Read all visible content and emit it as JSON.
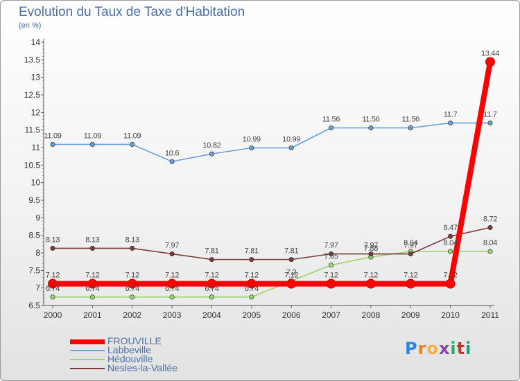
{
  "title": "Evolution du Taux de Taxe d'Habitation",
  "subtitle": "(en %)",
  "brand": {
    "letters": [
      "P",
      "r",
      "o",
      "x",
      "i",
      "t",
      "i"
    ],
    "colors": [
      "#2e86de",
      "#e67e22",
      "#f5b041",
      "#8e44ad",
      "#27ae60",
      "#c0392b",
      "#16a085"
    ]
  },
  "chart_data": {
    "type": "line",
    "title": "Evolution du Taux de Taxe d'Habitation",
    "ylabel": "(en %)",
    "xlabel": "",
    "x": [
      "2000",
      "2001",
      "2002",
      "2003",
      "2004",
      "2005",
      "2006",
      "2007",
      "2008",
      "2009",
      "2010",
      "2011"
    ],
    "ylim": [
      6.5,
      14
    ],
    "yticks": [
      "6.5",
      "7",
      "7.5",
      "8",
      "8.5",
      "9",
      "9.5",
      "10",
      "10.5",
      "11",
      "11.5",
      "12",
      "12.5",
      "13",
      "13.5",
      "14"
    ],
    "grid": false,
    "legend": "bottom-left",
    "series": [
      {
        "name": "FROUVILLE",
        "color": "#ff0000",
        "thick": true,
        "values": [
          7.12,
          7.12,
          7.12,
          7.12,
          7.12,
          7.12,
          7.12,
          7.12,
          7.12,
          7.12,
          7.12,
          13.44
        ],
        "labels": [
          "7.12",
          "7.12",
          "7.12",
          "7.12",
          "7.12",
          "7.12",
          "7.12",
          "7.12",
          "7.12",
          "7.12",
          "7.12",
          "13.44"
        ]
      },
      {
        "name": "Labbeville",
        "color": "#6a9fd4",
        "thick": false,
        "values": [
          11.09,
          11.09,
          11.09,
          10.6,
          10.82,
          10.99,
          10.99,
          11.56,
          11.56,
          11.56,
          11.7,
          11.7
        ],
        "labels": [
          "11.09",
          "11.09",
          "11.09",
          "10.6",
          "10.82",
          "10.99",
          "10.99",
          "11.56",
          "11.56",
          "11.56",
          "11.7",
          "11.7"
        ]
      },
      {
        "name": "Hédouville",
        "color": "#99d66b",
        "thick": false,
        "values": [
          6.74,
          6.74,
          6.74,
          6.74,
          6.74,
          6.74,
          7.2,
          7.65,
          7.88,
          8.04,
          8.04,
          8.04
        ],
        "labels": [
          "6.74",
          "6.74",
          "6.74",
          "6.74",
          "6.74",
          "6.74",
          "7.2",
          "7.65",
          "7.88",
          "8.04",
          "8.04",
          "8.04"
        ]
      },
      {
        "name": "Nesles-la-Vallée",
        "color": "#7a3b3b",
        "thick": false,
        "values": [
          8.13,
          8.13,
          8.13,
          7.97,
          7.81,
          7.81,
          7.81,
          7.97,
          7.97,
          7.97,
          8.47,
          8.72
        ],
        "labels": [
          "8.13",
          "8.13",
          "8.13",
          "7.97",
          "7.81",
          "7.81",
          "7.81",
          "7.97",
          "7.97",
          "7.97",
          "8.47",
          "8.72"
        ]
      }
    ]
  }
}
